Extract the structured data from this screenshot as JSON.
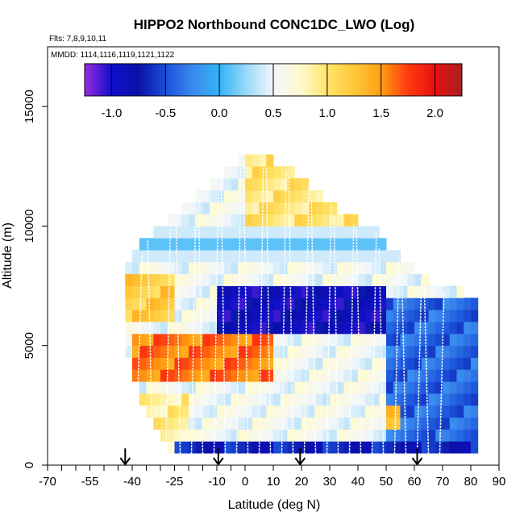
{
  "chart_data": {
    "type": "heatmap",
    "title": "HIPPO2 Northbound CONC1DC_LWO (Log)",
    "flights_label": "Flts: 7,8,9,10,11",
    "dates_label": "MMDD: 1114,1116,1119,1121,1122",
    "xlabel": "Latitude (deg N)",
    "ylabel": "Altitude (m)",
    "xlim": [
      -70,
      90
    ],
    "ylim": [
      0,
      17500
    ],
    "x_ticks": [
      -70,
      -55,
      -40,
      -25,
      -10,
      0,
      10,
      20,
      30,
      40,
      50,
      60,
      70,
      80,
      90
    ],
    "x_tick_labels": [
      "-70",
      "-55",
      "-40",
      "-25",
      "-10",
      "0",
      "10",
      "20",
      "30",
      "40",
      "50",
      "60",
      "70",
      "80",
      "90"
    ],
    "x_minor_ticks": [
      -65,
      -60,
      -50,
      -45,
      -35,
      -30,
      -20,
      -15,
      -5
    ],
    "y_ticks": [
      0,
      5000,
      10000,
      15000
    ],
    "y_tick_labels": [
      "0",
      "5000",
      "10000",
      "15000"
    ],
    "colorbar": {
      "range": [
        -1.25,
        2.25
      ],
      "ticks": [
        -1.0,
        -0.5,
        0.0,
        0.5,
        1.0,
        1.5,
        2.0
      ],
      "tick_labels": [
        "-1.0",
        "-0.5",
        "0.0",
        "0.5",
        "1.0",
        "1.5",
        "2.0"
      ],
      "stops": [
        [
          -1.25,
          "#9a2be2"
        ],
        [
          -1.0,
          "#1010c8"
        ],
        [
          -0.75,
          "#0a10a8"
        ],
        [
          -0.5,
          "#1a50d8"
        ],
        [
          -0.25,
          "#3a88ee"
        ],
        [
          0.0,
          "#32b4f5"
        ],
        [
          0.25,
          "#9ad8fa"
        ],
        [
          0.5,
          "#f2f6fb"
        ],
        [
          0.75,
          "#fffad0"
        ],
        [
          1.0,
          "#ffe46a"
        ],
        [
          1.25,
          "#ffc83a"
        ],
        [
          1.5,
          "#ffa010"
        ],
        [
          1.75,
          "#ff3a10"
        ],
        [
          2.0,
          "#e81010"
        ],
        [
          2.25,
          "#a82020"
        ]
      ]
    },
    "grid": {
      "lat_bin_width": 2.5,
      "alt_bin_height": 500,
      "lat_start": -42.5,
      "lat_end": 82.5,
      "alt_max": 14000
    },
    "coverage_top_m": [
      {
        "lat": -42.5,
        "alt": 8500
      },
      {
        "lat": -35,
        "alt": 9500
      },
      {
        "lat": -25,
        "alt": 10500
      },
      {
        "lat": -15,
        "alt": 11500
      },
      {
        "lat": -5,
        "alt": 12500
      },
      {
        "lat": 0,
        "alt": 13000
      },
      {
        "lat": 5,
        "alt": 13000
      },
      {
        "lat": 15,
        "alt": 12500
      },
      {
        "lat": 25,
        "alt": 11500
      },
      {
        "lat": 35,
        "alt": 10500
      },
      {
        "lat": 45,
        "alt": 10000
      },
      {
        "lat": 52,
        "alt": 9000
      },
      {
        "lat": 62,
        "alt": 8000
      },
      {
        "lat": 70,
        "alt": 7500
      },
      {
        "lat": 82.5,
        "alt": 7000
      }
    ],
    "coverage_bottom_m": [
      {
        "lat": -42.5,
        "alt": 5000
      },
      {
        "lat": -37.5,
        "alt": 3000
      },
      {
        "lat": -32.5,
        "alt": 1500
      },
      {
        "lat": -25,
        "alt": 500
      },
      {
        "lat": 82.5,
        "alt": 500
      }
    ],
    "value_field_bands": [
      {
        "lat_range": [
          -42.5,
          -25
        ],
        "alt_range": [
          6000,
          8000
        ],
        "value": 1.2
      },
      {
        "lat_range": [
          -42.5,
          -20
        ],
        "alt_range": [
          0,
          3000
        ],
        "value": 0.9
      },
      {
        "lat_range": [
          -40,
          10
        ],
        "alt_range": [
          3500,
          5500
        ],
        "value": 1.6
      },
      {
        "lat_range": [
          -10,
          50
        ],
        "alt_range": [
          5500,
          7500
        ],
        "value": -0.9
      },
      {
        "lat_range": [
          0,
          40
        ],
        "alt_range": [
          10000,
          13000
        ],
        "value": 1.0
      },
      {
        "lat_range": [
          -25,
          82.5
        ],
        "alt_range": [
          0,
          1000
        ],
        "value": -0.7
      },
      {
        "lat_range": [
          50,
          82.5
        ],
        "alt_range": [
          1000,
          7000
        ],
        "value": -0.4
      },
      {
        "lat_range": [
          50,
          55
        ],
        "alt_range": [
          1500,
          2500
        ],
        "value": 1.4
      }
    ],
    "flight_track_latitudes": [
      -42,
      -38,
      -33,
      -28,
      -23,
      -19,
      -15,
      -11,
      -7,
      -3,
      1,
      5,
      9,
      13,
      17,
      21,
      25,
      29,
      33,
      37,
      41,
      45,
      49,
      53,
      57,
      61,
      65,
      69
    ],
    "arrow_latitudes": [
      -42.5,
      -9.5,
      19.5,
      61
    ],
    "arrow_top_m": 700
  }
}
